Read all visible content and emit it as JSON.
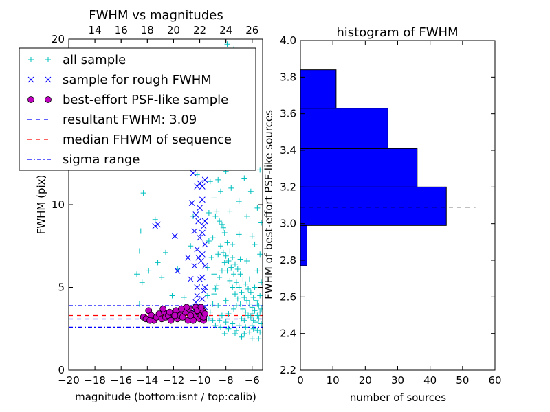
{
  "chart_data": [
    {
      "type": "scatter",
      "title": "FWHM vs magnitudes",
      "xlabel": "magnitude (bottom:isnt / top:calib)",
      "ylabel": "FWHM (pix)",
      "xlim": [
        -20,
        -5.2
      ],
      "ylim": [
        0,
        20
      ],
      "top_axis_offset": 32.0,
      "xticks": [
        -20,
        -18,
        -16,
        -14,
        -12,
        -10,
        -8,
        -6
      ],
      "xtick_labels": [
        "−20",
        "−18",
        "−16",
        "−14",
        "−12",
        "−10",
        "−8",
        "−6"
      ],
      "top_ticks": [
        14,
        16,
        18,
        20,
        22,
        24,
        26
      ],
      "top_tick_labels": [
        "14",
        "16",
        "18",
        "20",
        "22",
        "24",
        "26"
      ],
      "yticks": [
        0,
        5,
        10,
        20
      ],
      "ytick_labels": [
        "0",
        "5",
        "10",
        "20"
      ],
      "grid": false,
      "legend_position": "top-left",
      "legend": [
        {
          "label": "all sample",
          "marker": "plus",
          "color": "#00bfbf"
        },
        {
          "label": "sample for rough FWHM",
          "marker": "cross",
          "color": "#0000ff"
        },
        {
          "label": "best-effort PSF-like sample",
          "marker": "circle",
          "color": "#bf00bf"
        },
        {
          "label": "resultant FWHM: 3.09",
          "marker": "dashed",
          "color": "#0000ff"
        },
        {
          "label": "median FHWM of sequence",
          "marker": "dashed",
          "color": "#ff0000"
        },
        {
          "label": "sigma range",
          "marker": "dashdot",
          "color": "#0000ff"
        }
      ],
      "lines": {
        "resultant_fwhm": 3.09,
        "median_fwhm": 3.3,
        "sigma_range": [
          2.6,
          3.9
        ]
      },
      "series": [
        {
          "name": "all sample",
          "marker": "plus",
          "color": "#00bfbf",
          "points": [
            [
              -14.3,
              10.7
            ],
            [
              -14.5,
              8.4
            ],
            [
              -14.6,
              7.2
            ],
            [
              -14.8,
              5.8
            ],
            [
              -14.4,
              5.3
            ],
            [
              -14.6,
              4.0
            ],
            [
              -13.2,
              6.5
            ],
            [
              -13.9,
              6.0
            ],
            [
              -12.6,
              7.1
            ],
            [
              -12.9,
              5.6
            ],
            [
              -12.1,
              4.5
            ],
            [
              -13.4,
              9.1
            ],
            [
              -11.7,
              6.1
            ],
            [
              -10.7,
              7.5
            ],
            [
              -11.2,
              4.4
            ],
            [
              -9.9,
              15.0
            ],
            [
              -10.2,
              11.8
            ],
            [
              -10.5,
              9.3
            ],
            [
              -9.4,
              13.4
            ],
            [
              -9.1,
              16.2
            ],
            [
              -8.8,
              12.7
            ],
            [
              -8.6,
              11.5
            ],
            [
              -8.4,
              13.8
            ],
            [
              -8.1,
              17.0
            ],
            [
              -7.9,
              19.7
            ],
            [
              -7.7,
              18.9
            ],
            [
              -7.4,
              19.4
            ],
            [
              -7.1,
              14.6
            ],
            [
              -6.8,
              13.0
            ],
            [
              -8.9,
              10.4
            ],
            [
              -8.7,
              9.6
            ],
            [
              -8.5,
              9.0
            ],
            [
              -8.3,
              8.8
            ],
            [
              -8.1,
              8.3
            ],
            [
              -7.9,
              7.7
            ],
            [
              -7.7,
              7.2
            ],
            [
              -7.5,
              6.8
            ],
            [
              -7.3,
              6.4
            ],
            [
              -7.1,
              6.1
            ],
            [
              -6.9,
              5.8
            ],
            [
              -6.7,
              5.5
            ],
            [
              -6.5,
              5.2
            ],
            [
              -6.3,
              4.9
            ],
            [
              -6.1,
              4.7
            ],
            [
              -5.9,
              4.4
            ],
            [
              -5.7,
              4.2
            ],
            [
              -5.5,
              3.9
            ],
            [
              -5.3,
              3.7
            ],
            [
              -5.5,
              3.1
            ],
            [
              -5.7,
              2.9
            ],
            [
              -6.0,
              2.7
            ],
            [
              -6.5,
              2.6
            ],
            [
              -7.0,
              2.7
            ],
            [
              -7.5,
              2.8
            ],
            [
              -8.0,
              2.9
            ],
            [
              -8.5,
              3.0
            ],
            [
              -9.0,
              3.0
            ],
            [
              -9.3,
              3.1
            ],
            [
              -9.2,
              3.5
            ],
            [
              -9.0,
              4.0
            ],
            [
              -8.9,
              4.6
            ],
            [
              -8.7,
              5.1
            ],
            [
              -8.5,
              5.6
            ],
            [
              -8.3,
              6.0
            ],
            [
              -8.1,
              6.5
            ],
            [
              -7.9,
              6.0
            ],
            [
              -7.7,
              5.4
            ],
            [
              -7.5,
              5.0
            ],
            [
              -7.3,
              4.6
            ],
            [
              -7.1,
              4.3
            ],
            [
              -6.9,
              4.0
            ],
            [
              -6.7,
              3.7
            ],
            [
              -6.5,
              3.5
            ],
            [
              -6.3,
              3.3
            ],
            [
              -6.1,
              3.2
            ],
            [
              -5.9,
              3.0
            ],
            [
              -5.6,
              3.3
            ],
            [
              -5.4,
              3.5
            ],
            [
              -5.3,
              2.8
            ],
            [
              -5.4,
              2.3
            ],
            [
              -5.6,
              2.4
            ],
            [
              -5.9,
              2.5
            ],
            [
              -6.2,
              2.3
            ],
            [
              -6.6,
              2.2
            ],
            [
              -7.2,
              2.4
            ],
            [
              -7.8,
              2.5
            ],
            [
              -8.4,
              2.6
            ],
            [
              -8.8,
              2.7
            ],
            [
              -8.6,
              7.0
            ],
            [
              -8.4,
              7.5
            ],
            [
              -8.2,
              7.1
            ],
            [
              -8.0,
              6.9
            ],
            [
              -7.8,
              6.6
            ],
            [
              -7.6,
              6.2
            ],
            [
              -7.4,
              5.8
            ],
            [
              -7.2,
              5.3
            ],
            [
              -7.0,
              5.0
            ],
            [
              -6.8,
              4.7
            ],
            [
              -6.6,
              4.4
            ],
            [
              -6.4,
              4.2
            ],
            [
              -6.2,
              4.0
            ],
            [
              -6.0,
              3.8
            ],
            [
              -5.8,
              3.6
            ],
            [
              -5.6,
              4.0
            ],
            [
              -5.4,
              4.5
            ],
            [
              -5.3,
              5.3
            ],
            [
              -5.6,
              6.0
            ],
            [
              -5.4,
              7.0
            ],
            [
              -5.3,
              8.9
            ],
            [
              -6.2,
              5.5
            ],
            [
              -6.9,
              6.7
            ],
            [
              -7.5,
              7.6
            ],
            [
              -8.2,
              8.6
            ],
            [
              -8.8,
              9.3
            ],
            [
              -9.0,
              8.0
            ],
            [
              -9.1,
              6.8
            ],
            [
              -8.9,
              5.8
            ],
            [
              -8.8,
              4.9
            ],
            [
              -7.4,
              3.7
            ],
            [
              -6.8,
              3.1
            ],
            [
              -7.8,
              3.4
            ],
            [
              -8.3,
              3.3
            ],
            [
              -8.6,
              3.9
            ],
            [
              -7.0,
              10.2
            ],
            [
              -6.4,
              9.3
            ],
            [
              -6.0,
              8.1
            ],
            [
              -5.8,
              7.6
            ],
            [
              -7.6,
              11.0
            ],
            [
              -8.0,
              12.0
            ],
            [
              -8.4,
              10.8
            ],
            [
              -8.0,
              4.2
            ],
            [
              -7.2,
              3.9
            ],
            [
              -6.6,
              3.0
            ],
            [
              -6.0,
              3.4
            ],
            [
              -5.8,
              5.0
            ],
            [
              -6.4,
              6.6
            ],
            [
              -7.0,
              8.2
            ],
            [
              -7.7,
              9.6
            ],
            [
              -8.7,
              14.5
            ],
            [
              -9.2,
              11.4
            ],
            [
              -9.3,
              9.5
            ],
            [
              -9.3,
              7.8
            ],
            [
              -9.4,
              6.2
            ],
            [
              -9.4,
              4.5
            ],
            [
              -8.2,
              15.2
            ],
            [
              -7.3,
              12.4
            ],
            [
              -6.6,
              11.6
            ],
            [
              -6.1,
              10.8
            ],
            [
              -5.6,
              9.8
            ],
            [
              -5.4,
              12.1
            ],
            [
              -7.3,
              2.2
            ],
            [
              -6.8,
              2.0
            ],
            [
              -6.0,
              1.9
            ],
            [
              -5.5,
              1.9
            ],
            [
              -8.1,
              2.2
            ]
          ]
        },
        {
          "name": "sample for rough FWHM",
          "marker": "cross",
          "color": "#0000ff",
          "points": [
            [
              -13.4,
              8.7
            ],
            [
              -13.2,
              8.8
            ],
            [
              -11.9,
              8.1
            ],
            [
              -11.7,
              6.0
            ],
            [
              -10.9,
              6.8
            ],
            [
              -10.7,
              5.5
            ],
            [
              -10.3,
              4.1
            ],
            [
              -10.2,
              5.0
            ],
            [
              -10.4,
              6.3
            ],
            [
              -10.2,
              7.3
            ],
            [
              -10.4,
              8.4
            ],
            [
              -10.3,
              9.4
            ],
            [
              -10.6,
              10.1
            ],
            [
              -10.2,
              11.1
            ],
            [
              -10.5,
              11.9
            ],
            [
              -10.2,
              12.7
            ],
            [
              -10.0,
              11.3
            ],
            [
              -9.8,
              11.1
            ],
            [
              -9.6,
              11.5
            ],
            [
              -9.8,
              10.3
            ],
            [
              -9.6,
              9.0
            ],
            [
              -9.8,
              8.3
            ],
            [
              -9.6,
              7.6
            ],
            [
              -9.8,
              7.0
            ],
            [
              -9.6,
              6.3
            ],
            [
              -9.8,
              5.6
            ],
            [
              -9.6,
              5.0
            ],
            [
              -9.8,
              4.3
            ],
            [
              -9.6,
              3.8
            ],
            [
              -10.0,
              3.6
            ],
            [
              -10.2,
              4.5
            ],
            [
              -10.0,
              5.5
            ],
            [
              -10.1,
              6.8
            ],
            [
              -10.0,
              8.0
            ],
            [
              -10.1,
              9.0
            ],
            [
              -10.0,
              9.8
            ],
            [
              -9.7,
              8.7
            ],
            [
              -9.9,
              6.6
            ],
            [
              -9.7,
              4.8
            ],
            [
              -10.4,
              3.5
            ]
          ]
        },
        {
          "name": "best-effort PSF-like sample",
          "marker": "circle",
          "color": "#bf00bf",
          "points": [
            [
              -14.3,
              3.2
            ],
            [
              -14.1,
              3.1
            ],
            [
              -13.9,
              3.6
            ],
            [
              -13.7,
              3.3
            ],
            [
              -13.5,
              3.0
            ],
            [
              -13.3,
              3.2
            ],
            [
              -13.1,
              3.4
            ],
            [
              -12.9,
              3.1
            ],
            [
              -12.7,
              3.5
            ],
            [
              -12.6,
              3.2
            ],
            [
              -12.4,
              3.3
            ],
            [
              -12.2,
              3.0
            ],
            [
              -12.0,
              3.4
            ],
            [
              -11.8,
              3.6
            ],
            [
              -11.7,
              3.1
            ],
            [
              -11.5,
              3.3
            ],
            [
              -11.3,
              3.2
            ],
            [
              -11.1,
              3.5
            ],
            [
              -10.9,
              3.0
            ],
            [
              -10.8,
              3.7
            ],
            [
              -10.6,
              3.4
            ],
            [
              -10.4,
              3.2
            ],
            [
              -10.3,
              3.8
            ],
            [
              -10.1,
              3.5
            ],
            [
              -10.0,
              3.1
            ],
            [
              -9.9,
              3.3
            ],
            [
              -9.8,
              3.6
            ],
            [
              -9.7,
              3.0
            ],
            [
              -9.7,
              3.2
            ],
            [
              -9.6,
              3.4
            ],
            [
              -13.8,
              3.0
            ],
            [
              -12.8,
              3.7
            ],
            [
              -11.9,
              3.3
            ],
            [
              -11.0,
              3.8
            ],
            [
              -10.5,
              3.0
            ],
            [
              -10.2,
              3.6
            ],
            [
              -9.9,
              3.8
            ],
            [
              -10.7,
              3.3
            ],
            [
              -11.4,
              3.7
            ],
            [
              -12.3,
              3.5
            ]
          ]
        }
      ]
    },
    {
      "type": "bar",
      "orientation": "horizontal",
      "title": "histogram of FWHM",
      "xlabel": "number of sources",
      "ylabel": "FWHM of best-effort PSF-like sources",
      "xlim": [
        0,
        60
      ],
      "ylim": [
        2.2,
        4.0
      ],
      "xticks": [
        0,
        10,
        20,
        30,
        40,
        50,
        60
      ],
      "xtick_labels": [
        "0",
        "10",
        "20",
        "30",
        "40",
        "50",
        "60"
      ],
      "yticks": [
        2.2,
        2.4,
        2.6,
        2.8,
        3.0,
        3.2,
        3.4,
        3.6,
        3.8,
        4.0
      ],
      "ytick_labels": [
        "2.2",
        "2.4",
        "2.6",
        "2.8",
        "3.0",
        "3.2",
        "3.4",
        "3.6",
        "3.8",
        "4.0"
      ],
      "grid": false,
      "bar_color": "#0000ff",
      "bins": [
        {
          "from": 2.77,
          "to": 2.99,
          "count": 2
        },
        {
          "from": 2.99,
          "to": 3.2,
          "count": 45
        },
        {
          "from": 3.2,
          "to": 3.41,
          "count": 36
        },
        {
          "from": 3.41,
          "to": 3.63,
          "count": 27
        },
        {
          "from": 3.63,
          "to": 3.84,
          "count": 11
        }
      ],
      "reference_line": {
        "value": 3.09,
        "x_end": 54,
        "style": "dashed",
        "color": "#000000"
      }
    }
  ]
}
